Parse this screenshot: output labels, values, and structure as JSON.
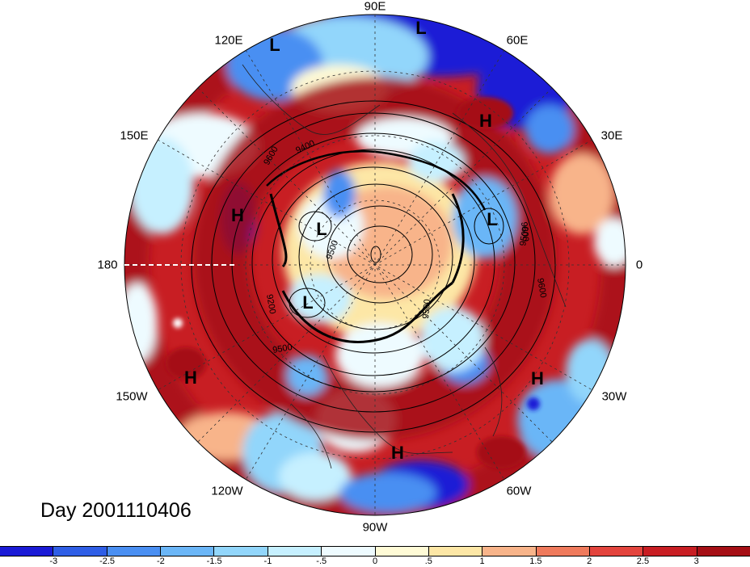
{
  "longitude_labels": {
    "n90e": "90E",
    "n120e": "120E",
    "n60e": "60E",
    "n150e": "150E",
    "n30e": "30E",
    "n180": "180",
    "n0": "0",
    "n150w": "150W",
    "n30w": "30W",
    "n120w": "120W",
    "n60w": "60W",
    "n90w": "90W"
  },
  "pressure_centers": [
    {
      "kind": "L"
    },
    {
      "kind": "L"
    },
    {
      "kind": "H"
    },
    {
      "kind": "H"
    },
    {
      "kind": "L"
    },
    {
      "kind": "L"
    },
    {
      "kind": "L"
    },
    {
      "kind": "H"
    },
    {
      "kind": "H"
    },
    {
      "kind": "H"
    }
  ],
  "contour_labels": [
    "9600",
    "9400",
    "9500",
    "9200",
    "9500",
    "9600",
    "9500",
    "9600",
    "9500"
  ],
  "day_label": "Day 2001110406",
  "colorbar": {
    "colors": [
      "#1a1ad6",
      "#2f5ee6",
      "#4a8ff2",
      "#6bb6f7",
      "#92d6fb",
      "#c6f0ff",
      "#eefbff",
      "#fffbd6",
      "#fde7a6",
      "#f8b48a",
      "#ef7a5c",
      "#e3443d",
      "#c81e23",
      "#a50f15"
    ],
    "tick_labels": [
      "-3",
      "-2.5",
      "-2",
      "-1.5",
      "-1",
      "-.5",
      "0",
      ".5",
      "1",
      "1.5",
      "2",
      "2.5",
      "3"
    ]
  },
  "colors": {
    "deep_red": "#a50f15",
    "red": "#c81e23",
    "light_red": "#ef7a5c",
    "deep_blue": "#1a1ad6",
    "blue": "#4a8ff2",
    "light_blue": "#92d6fb",
    "pale": "#eefbff"
  }
}
